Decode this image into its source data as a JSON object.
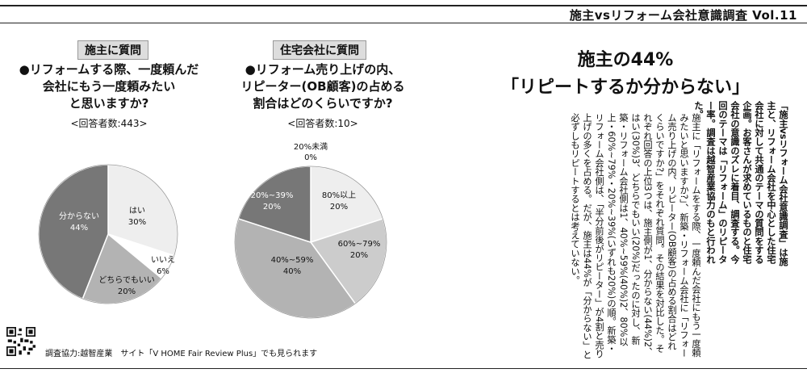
{
  "header": {
    "title": "施主vsリフォーム会社意識調査 Vol.11"
  },
  "left_survey": {
    "tag": "施主に質問",
    "question_lines": [
      "●リフォームする際、一度頼んだ",
      "会社にもう一度頼みたい",
      "と思いますか?"
    ],
    "respondents": "<回答者数:443>",
    "chart_data": {
      "type": "pie",
      "categories": [
        "はい",
        "いいえ",
        "どちらでもいい",
        "分からない"
      ],
      "labels": [
        "30%",
        "6%",
        "20%",
        "44%"
      ],
      "values": [
        30,
        6,
        20,
        44
      ],
      "colors": [
        "#eeeeee",
        "#ffffff",
        "#b3b3b3",
        "#777777"
      ]
    }
  },
  "right_survey": {
    "tag": "住宅会社に質問",
    "question_lines": [
      "●リフォーム売り上げの内、",
      "リピーター(OB顧客)の占める",
      "割合はどのくらいですか?"
    ],
    "respondents": "<回答者数:10>",
    "chart_data": {
      "type": "pie",
      "categories": [
        "20%未満",
        "80%以上",
        "60%~79%",
        "40%~59%",
        "20%~39%"
      ],
      "labels": [
        "0%",
        "20%",
        "20%",
        "40%",
        "20%"
      ],
      "values": [
        0,
        20,
        20,
        40,
        20
      ],
      "colors": [
        "#ffffff",
        "#eeeeee",
        "#cccccc",
        "#b3b3b3",
        "#777777"
      ]
    }
  },
  "article": {
    "headline_lines": [
      "施主の44%",
      "「リピートするか分からない」"
    ],
    "intro": "「施主vsリフォーム会社意識調査」は施主と、リフォーム会社を中心とした住宅会社に対して共通のテーマの質問をする企画。お客さんが求めているものと住宅会社の意識のズレに着目、調査する。今回のテーマは「リフォーム」のリピーター率。調査は越智産業協力のもと行われた。",
    "body": "施主に「リフォームをする際、一度頼んだ会社にもう一度頼みたいと思いますか?」、新築・リフォーム会社に「リフォーム売り上げの内、リピーター(OB顧客)の占める割合はどれくらいですか?」をそれぞれ質問。その結果を対比した。それぞれ回答の上位3つは、施主側が1、分からない(44%)2、はい(30%)3、どちらでもいい(20%)だったのに対し、新築・リフォーム会社側は1、40%~59%(40%)2、80%以上・60%~79%・20%~39%(いずれも20%)の順。新築・リフォーム会社側は、「半分前後がリピーター」が4割と売り上げの多くを占める。だが、施主は44%が「分からない」と必ずしもリピートするとは考えていない。"
  },
  "footer": {
    "text": "調査協力:越智産業　サイト「V HOME Fair Review Plus」でも見られます"
  }
}
